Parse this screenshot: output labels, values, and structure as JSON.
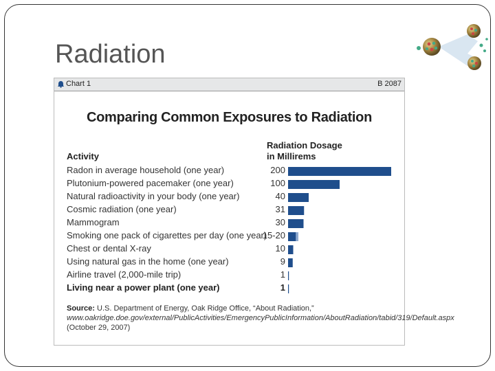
{
  "slide": {
    "title": "Radiation"
  },
  "chart_header": {
    "label": "Chart 1",
    "code": "B 2087"
  },
  "chart_data": {
    "type": "bar",
    "orientation": "horizontal",
    "title": "Comparing Common Exposures to Radiation",
    "category_header": "Activity",
    "value_header_line1": "Radiation Dosage",
    "value_header_line2": "in Millirems",
    "categories": [
      "Radon in average household (one year)",
      "Plutonium-powered pacemaker (one year)",
      "Natural radioactivity in your body (one year)",
      "Cosmic radiation (one year)",
      "Mammogram",
      "Smoking one pack of cigarettes per day (one year)",
      "Chest or dental X-ray",
      "Using natural gas in the home (one year)",
      "Airline travel (2,000-mile trip)",
      "Living near a power plant (one year)"
    ],
    "value_labels": [
      "200",
      "100",
      "40",
      "31",
      "30",
      "15-20",
      "10",
      "9",
      "1",
      "1"
    ],
    "values": [
      200,
      100,
      40,
      31,
      30,
      17.5,
      10,
      9,
      1,
      1
    ],
    "range_low": [
      null,
      null,
      null,
      null,
      null,
      15,
      null,
      null,
      null,
      null
    ],
    "range_high": [
      null,
      null,
      null,
      null,
      null,
      20,
      null,
      null,
      null,
      null
    ],
    "xlim": [
      0,
      200
    ],
    "bar_color": "#1f4e8c",
    "range_color": "#8ea9cf",
    "emphasized_index": 9,
    "source_label": "Source:",
    "source_text": "U.S. Department of Energy, Oak Ridge Office, “About Radiation,”",
    "source_url": "www.oakridge.doe.gov/external/PublicActivities/EmergencyPublicInformation/AboutRadiation/tabid/319/Default.aspx",
    "source_date": "(October 29, 2007)"
  }
}
